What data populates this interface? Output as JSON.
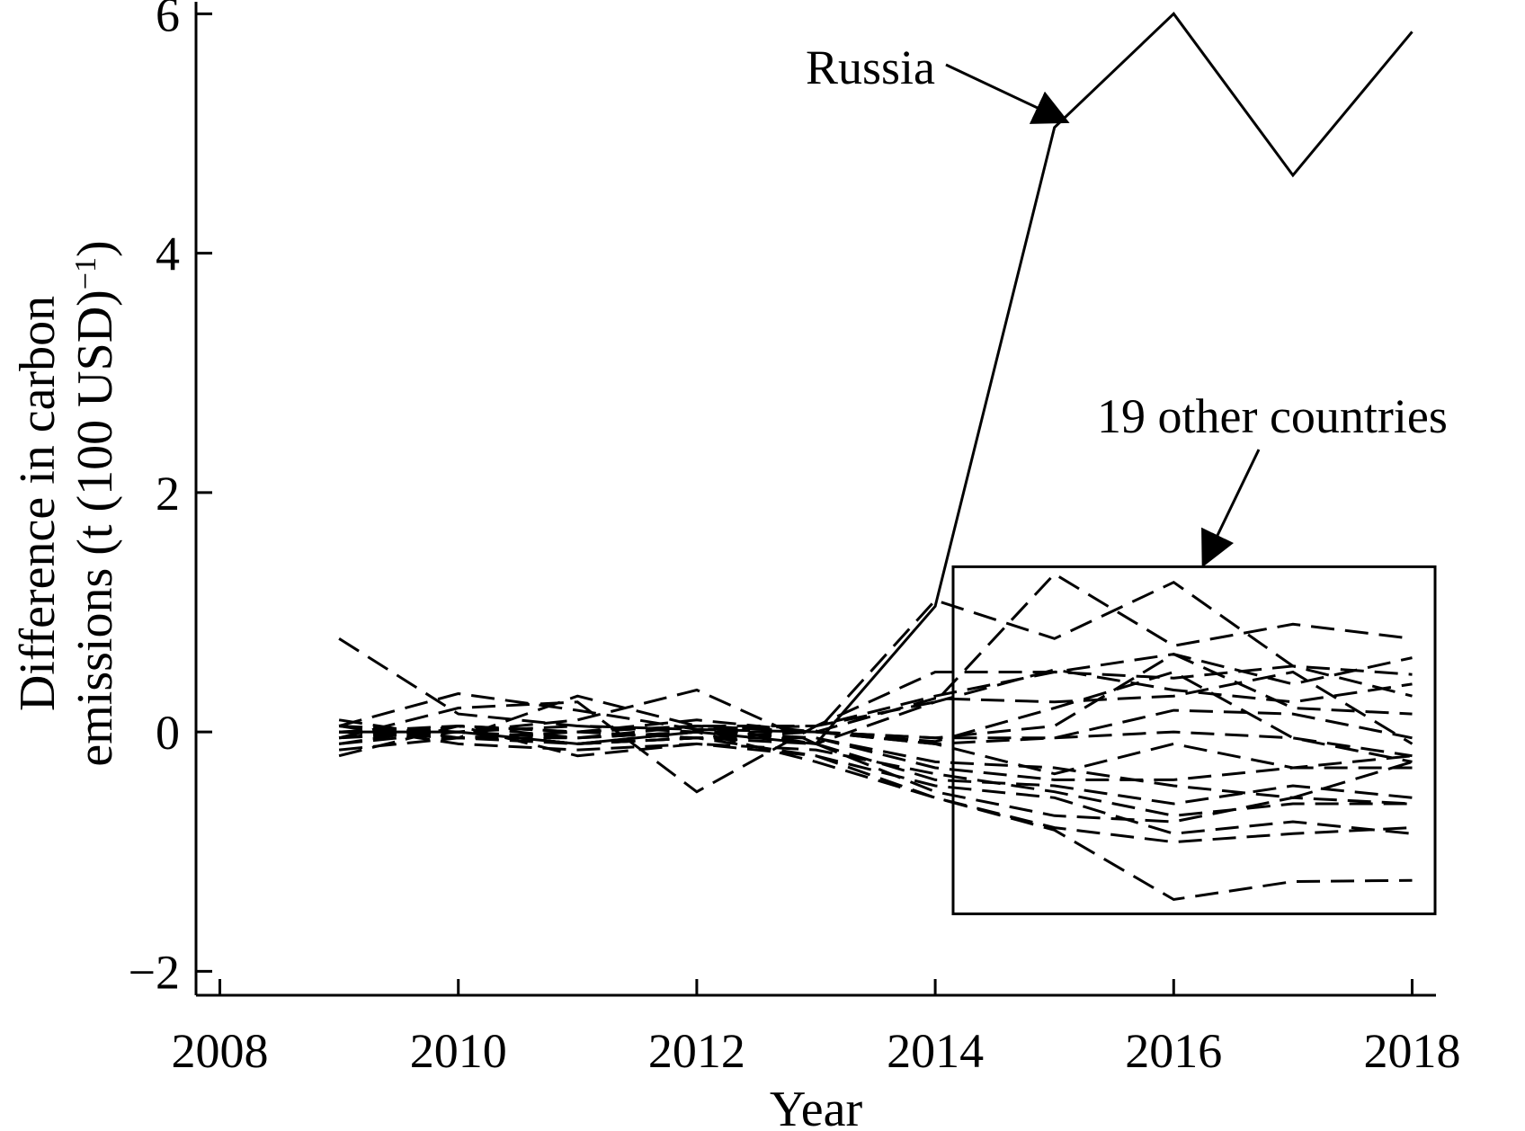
{
  "chart_data": {
    "type": "line",
    "xlabel": "Year",
    "ylabel": "Difference in carbon emissions (t (100 USD)",
    "ylabel_superscript": "−1",
    "ylabel_close": ")",
    "xlim": [
      2007.8,
      2018.2
    ],
    "ylim": [
      -2.2,
      6.1
    ],
    "xticks": [
      2008,
      2010,
      2012,
      2014,
      2016,
      2018
    ],
    "xtick_labels": [
      "2008",
      "2010",
      "2012",
      "2014",
      "2016",
      "2018"
    ],
    "yticks": [
      -2,
      0,
      2,
      4,
      6
    ],
    "ytick_labels": [
      "−2",
      "0",
      "2",
      "4",
      "6"
    ],
    "grid": false,
    "x": [
      2009,
      2010,
      2011,
      2012,
      2013,
      2014,
      2015,
      2016,
      2017,
      2018
    ],
    "annotations": [
      {
        "text": "Russia",
        "target_year": 2015.1,
        "target_value": 5.1
      },
      {
        "text": "19 other countries",
        "target_year": 2016.25,
        "target_value": 1.4
      }
    ],
    "highlight_box": {
      "x0": 2014.15,
      "x1": 2018.2,
      "y0": -1.52,
      "y1": 1.38
    },
    "series": [
      {
        "style": "solid",
        "values": [
          0,
          0,
          -0.1,
          0,
          -0.1,
          1.05,
          5.05,
          6.0,
          4.65,
          5.85
        ]
      },
      {
        "style": "dashed",
        "values": [
          0.78,
          0.15,
          0.05,
          0.02,
          0,
          1.1,
          0.78,
          1.25,
          0.55,
          0.3
        ]
      },
      {
        "style": "dashed",
        "values": [
          0.05,
          0.32,
          0.18,
          0.02,
          0.05,
          0.25,
          1.32,
          0.72,
          0.9,
          0.78
        ]
      },
      {
        "style": "dashed",
        "values": [
          0.1,
          -0.05,
          0.3,
          0.05,
          0.05,
          0.5,
          0.5,
          0.65,
          0.4,
          0.62
        ]
      },
      {
        "style": "dashed",
        "values": [
          -0.05,
          0.2,
          0.25,
          -0.5,
          0.05,
          0.3,
          0.5,
          0.45,
          0.55,
          0.48
        ]
      },
      {
        "style": "dashed",
        "values": [
          0,
          0,
          0.1,
          0.35,
          -0.1,
          0.25,
          0.52,
          0.35,
          0.25,
          0.4
        ]
      },
      {
        "style": "dashed",
        "values": [
          -0.1,
          0.05,
          0,
          0.1,
          0,
          0.28,
          0.25,
          0.3,
          0.5,
          -0.1
        ]
      },
      {
        "style": "dashed",
        "values": [
          0.05,
          0,
          -0.05,
          0,
          0,
          -0.05,
          0.05,
          0.65,
          0.2,
          0.15
        ]
      },
      {
        "style": "dashed",
        "values": [
          0,
          -0.05,
          0,
          0.05,
          0,
          -0.08,
          0.2,
          0.5,
          -0.05,
          -0.25
        ]
      },
      {
        "style": "dashed",
        "values": [
          -0.05,
          0,
          0.05,
          0,
          0,
          -0.05,
          -0.05,
          0.18,
          0.15,
          -0.05
        ]
      },
      {
        "style": "dashed",
        "values": [
          0,
          0.05,
          -0.05,
          0.05,
          0,
          -0.1,
          -0.05,
          0,
          -0.05,
          -0.2
        ]
      },
      {
        "style": "dashed",
        "values": [
          0.05,
          -0.05,
          0,
          -0.05,
          0,
          -0.1,
          -0.35,
          -0.1,
          -0.3,
          -0.2
        ]
      },
      {
        "style": "dashed",
        "values": [
          -0.1,
          0,
          -0.1,
          -0.05,
          -0.05,
          -0.25,
          -0.3,
          -0.45,
          -0.55,
          -0.25
        ]
      },
      {
        "style": "dashed",
        "values": [
          -0.15,
          -0.05,
          -0.05,
          0,
          -0.05,
          -0.3,
          -0.4,
          -0.4,
          -0.3,
          -0.3
        ]
      },
      {
        "style": "dashed",
        "values": [
          0,
          0,
          -0.1,
          -0.05,
          -0.1,
          -0.4,
          -0.45,
          -0.6,
          -0.45,
          -0.55
        ]
      },
      {
        "style": "dashed",
        "values": [
          -0.2,
          0.05,
          -0.2,
          -0.1,
          -0.15,
          -0.35,
          -0.5,
          -0.7,
          -0.6,
          -0.6
        ]
      },
      {
        "style": "dashed",
        "values": [
          0.05,
          -0.1,
          -0.15,
          -0.1,
          -0.2,
          -0.45,
          -0.55,
          -0.85,
          -0.75,
          -0.85
        ]
      },
      {
        "style": "dashed",
        "values": [
          0,
          0,
          -0.1,
          0,
          -0.25,
          -0.55,
          -0.8,
          -0.92,
          -0.85,
          -0.8
        ]
      },
      {
        "style": "dashed",
        "values": [
          -0.05,
          0.05,
          0,
          0.05,
          -0.1,
          -0.5,
          -0.7,
          -0.75,
          -0.55,
          -0.6
        ]
      },
      {
        "style": "dashed",
        "values": [
          0,
          -0.05,
          -0.1,
          -0.05,
          -0.2,
          -0.55,
          -0.82,
          -1.4,
          -1.25,
          -1.24
        ]
      }
    ]
  }
}
